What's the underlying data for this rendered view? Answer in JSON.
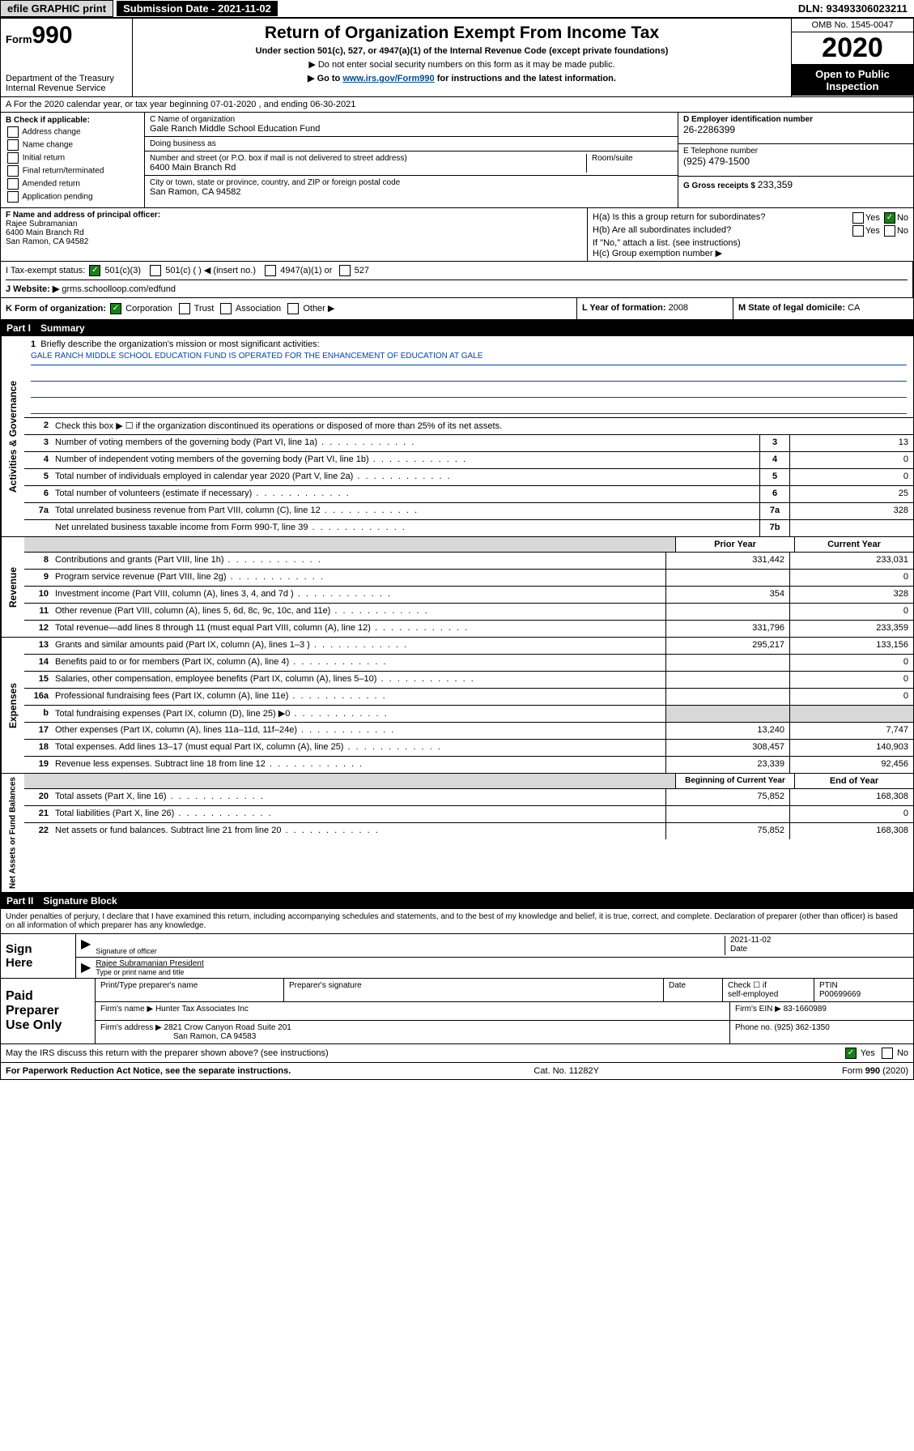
{
  "topbar": {
    "efile": "efile GRAPHIC print",
    "submission": "Submission Date - 2021-11-02",
    "dln": "DLN: 93493306023211"
  },
  "header": {
    "form_label": "Form",
    "form_number": "990",
    "title": "Return of Organization Exempt From Income Tax",
    "sub1": "Under section 501(c), 527, or 4947(a)(1) of the Internal Revenue Code (except private foundations)",
    "sub2": "▶ Do not enter social security numbers on this form as it may be made public.",
    "sub3_pre": "▶ Go to ",
    "sub3_link": "www.irs.gov/Form990",
    "sub3_post": " for instructions and the latest information.",
    "dept": "Department of the Treasury",
    "irs": "Internal Revenue Service",
    "omb": "OMB No. 1545-0047",
    "year": "2020",
    "open": "Open to Public Inspection"
  },
  "lineA": "A For the 2020 calendar year, or tax year beginning 07-01-2020   , and ending 06-30-2021",
  "boxB": {
    "label": "B Check if applicable:",
    "opts": [
      "Address change",
      "Name change",
      "Initial return",
      "Final return/terminated",
      "Amended return",
      "Application pending"
    ]
  },
  "boxC": {
    "name_label": "C Name of organization",
    "name": "Gale Ranch Middle School Education Fund",
    "dba_label": "Doing business as",
    "dba": "",
    "addr_label": "Number and street (or P.O. box if mail is not delivered to street address)",
    "room_label": "Room/suite",
    "addr": "6400 Main Branch Rd",
    "city_label": "City or town, state or province, country, and ZIP or foreign postal code",
    "city": "San Ramon, CA  94582"
  },
  "boxD": {
    "label": "D Employer identification number",
    "val": "26-2286399"
  },
  "boxE": {
    "label": "E Telephone number",
    "val": "(925) 479-1500"
  },
  "boxG": {
    "label": "G Gross receipts $",
    "val": "233,359"
  },
  "boxF": {
    "label": "F  Name and address of principal officer:",
    "name": "Rajee Subramanian",
    "addr1": "6400 Main Branch Rd",
    "addr2": "San Ramon, CA  94582"
  },
  "boxH": {
    "a_label": "H(a)  Is this a group return for subordinates?",
    "b_label": "H(b)  Are all subordinates included?",
    "b_note": "If \"No,\" attach a list. (see instructions)",
    "c_label": "H(c)  Group exemption number ▶",
    "yes": "Yes",
    "no": "No"
  },
  "rowI": {
    "label": "I   Tax-exempt status:",
    "o501c3": "501(c)(3)",
    "o501c": "501(c) (   ) ◀ (insert no.)",
    "o4947": "4947(a)(1) or",
    "o527": "527"
  },
  "rowJ": {
    "label": "J   Website: ▶",
    "val": "grms.schoolloop.com/edfund"
  },
  "rowK": {
    "label": "K Form of organization:",
    "corp": "Corporation",
    "trust": "Trust",
    "assoc": "Association",
    "other": "Other ▶",
    "l_label": "L Year of formation:",
    "l_val": "2008",
    "m_label": "M State of legal domicile:",
    "m_val": "CA"
  },
  "part1": {
    "header": "Part I",
    "header_title": "Summary",
    "sidebar1": "Activities & Governance",
    "sidebar2": "Revenue",
    "sidebar3": "Expenses",
    "sidebar4": "Net Assets or Fund Balances",
    "line1": "Briefly describe the organization's mission or most significant activities:",
    "mission": "GALE RANCH MIDDLE SCHOOL EDUCATION FUND IS OPERATED FOR THE ENHANCEMENT OF EDUCATION AT GALE",
    "line2": "Check this box ▶ ☐  if the organization discontinued its operations or disposed of more than 25% of its net assets.",
    "rows_single": [
      {
        "n": "3",
        "t": "Number of voting members of the governing body (Part VI, line 1a)",
        "ref": "3",
        "v": "13"
      },
      {
        "n": "4",
        "t": "Number of independent voting members of the governing body (Part VI, line 1b)",
        "ref": "4",
        "v": "0"
      },
      {
        "n": "5",
        "t": "Total number of individuals employed in calendar year 2020 (Part V, line 2a)",
        "ref": "5",
        "v": "0"
      },
      {
        "n": "6",
        "t": "Total number of volunteers (estimate if necessary)",
        "ref": "6",
        "v": "25"
      },
      {
        "n": "7a",
        "t": "Total unrelated business revenue from Part VIII, column (C), line 12",
        "ref": "7a",
        "v": "328"
      },
      {
        "n": "",
        "t": "Net unrelated business taxable income from Form 990-T, line 39",
        "ref": "7b",
        "v": ""
      }
    ],
    "col_prior": "Prior Year",
    "col_current": "Current Year",
    "col_boy": "Beginning of Current Year",
    "col_eoy": "End of Year",
    "rows_rev": [
      {
        "n": "8",
        "t": "Contributions and grants (Part VIII, line 1h)",
        "p": "331,442",
        "c": "233,031"
      },
      {
        "n": "9",
        "t": "Program service revenue (Part VIII, line 2g)",
        "p": "",
        "c": "0"
      },
      {
        "n": "10",
        "t": "Investment income (Part VIII, column (A), lines 3, 4, and 7d )",
        "p": "354",
        "c": "328"
      },
      {
        "n": "11",
        "t": "Other revenue (Part VIII, column (A), lines 5, 6d, 8c, 9c, 10c, and 11e)",
        "p": "",
        "c": "0"
      },
      {
        "n": "12",
        "t": "Total revenue—add lines 8 through 11 (must equal Part VIII, column (A), line 12)",
        "p": "331,796",
        "c": "233,359"
      }
    ],
    "rows_exp": [
      {
        "n": "13",
        "t": "Grants and similar amounts paid (Part IX, column (A), lines 1–3 )",
        "p": "295,217",
        "c": "133,156"
      },
      {
        "n": "14",
        "t": "Benefits paid to or for members (Part IX, column (A), line 4)",
        "p": "",
        "c": "0"
      },
      {
        "n": "15",
        "t": "Salaries, other compensation, employee benefits (Part IX, column (A), lines 5–10)",
        "p": "",
        "c": "0"
      },
      {
        "n": "16a",
        "t": "Professional fundraising fees (Part IX, column (A), line 11e)",
        "p": "",
        "c": "0"
      },
      {
        "n": "b",
        "t": "Total fundraising expenses (Part IX, column (D), line 25) ▶0",
        "p": "__GREY__",
        "c": "__GREY__"
      },
      {
        "n": "17",
        "t": "Other expenses (Part IX, column (A), lines 11a–11d, 11f–24e)",
        "p": "13,240",
        "c": "7,747"
      },
      {
        "n": "18",
        "t": "Total expenses. Add lines 13–17 (must equal Part IX, column (A), line 25)",
        "p": "308,457",
        "c": "140,903"
      },
      {
        "n": "19",
        "t": "Revenue less expenses. Subtract line 18 from line 12",
        "p": "23,339",
        "c": "92,456"
      }
    ],
    "rows_net": [
      {
        "n": "20",
        "t": "Total assets (Part X, line 16)",
        "p": "75,852",
        "c": "168,308"
      },
      {
        "n": "21",
        "t": "Total liabilities (Part X, line 26)",
        "p": "",
        "c": "0"
      },
      {
        "n": "22",
        "t": "Net assets or fund balances. Subtract line 21 from line 20",
        "p": "75,852",
        "c": "168,308"
      }
    ]
  },
  "part2": {
    "header": "Part II",
    "header_title": "Signature Block",
    "perjury": "Under penalties of perjury, I declare that I have examined this return, including accompanying schedules and statements, and to the best of my knowledge and belief, it is true, correct, and complete. Declaration of preparer (other than officer) is based on all information of which preparer has any knowledge."
  },
  "sign": {
    "label1": "Sign",
    "label2": "Here",
    "sig_label": "Signature of officer",
    "date_label": "Date",
    "date": "2021-11-02",
    "name": "Rajee Subramanian  President",
    "name_label": "Type or print name and title"
  },
  "prep": {
    "label1": "Paid",
    "label2": "Preparer",
    "label3": "Use Only",
    "h1": "Print/Type preparer's name",
    "h2": "Preparer's signature",
    "h3": "Date",
    "h4_a": "Check ☐ if",
    "h4_b": "self-employed",
    "h5": "PTIN",
    "ptin": "P00699669",
    "firm_name_label": "Firm's name    ▶",
    "firm_name": "Hunter Tax Associates Inc",
    "firm_ein_label": "Firm's EIN ▶",
    "firm_ein": "83-1660989",
    "firm_addr_label": "Firm's address ▶",
    "firm_addr1": "2821 Crow Canyon Road Suite 201",
    "firm_addr2": "San Ramon, CA  94583",
    "phone_label": "Phone no.",
    "phone": "(925) 362-1350"
  },
  "footer": {
    "discuss": "May the IRS discuss this return with the preparer shown above? (see instructions)",
    "yes": "Yes",
    "no": "No",
    "paperwork": "For Paperwork Reduction Act Notice, see the separate instructions.",
    "cat": "Cat. No. 11282Y",
    "form": "Form 990 (2020)"
  }
}
